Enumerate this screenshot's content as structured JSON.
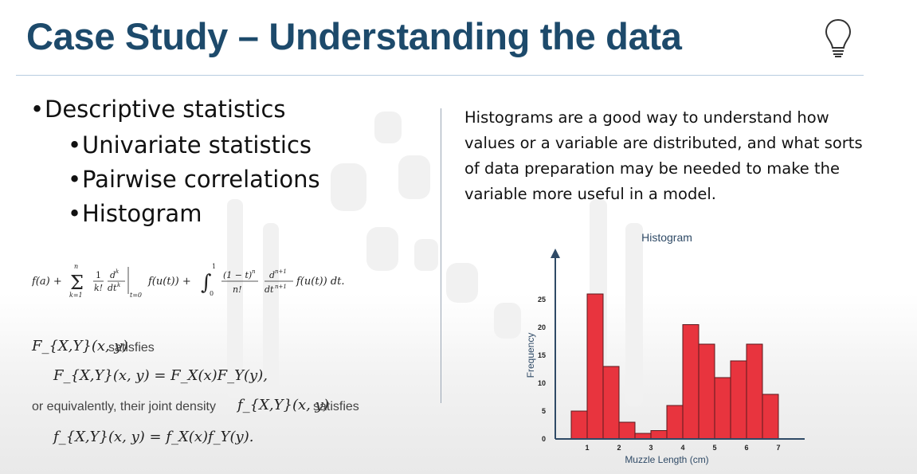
{
  "slide": {
    "title": "Case Study – Understanding the data",
    "title_color": "#1d4a6b",
    "icon": "lightbulb-icon"
  },
  "bullets": {
    "level1": [
      "Descriptive statistics"
    ],
    "level2": [
      "Univariate statistics",
      "Pairwise correlations",
      "Histogram"
    ]
  },
  "formulas": {
    "taylor": "f(a) + Σ_{k=1}^{n} (1/k!) (d^k/dt^k) f(u(t)) |_{t=0} + ∫_0^1 ((1 − t)^n / n!) (d^{n+1}/dt^{n+1}) f(u(t)) dt.",
    "joint_cdf": "F_{X,Y}(x, y)",
    "satisfies_1": "satisfies",
    "cdf_product": "F_{X,Y}(x, y) = F_X(x)F_Y(y),",
    "or_equivalently": "or equivalently, their joint density",
    "joint_pdf": "f_{X,Y}(x, y)",
    "satisfies_2": "satisfies",
    "pdf_product": "f_{X,Y}(x, y) = f_X(x)f_Y(y)."
  },
  "description": "Histograms are a good way to understand how values or a variable are distributed, and what sorts of data preparation may be needed to make the variable more useful in a model.",
  "chart_data": {
    "type": "bar",
    "title": "Histogram",
    "xlabel": "Muzzle Length (cm)",
    "ylabel": "Frequency",
    "bin_width": 0.5,
    "bins_start": [
      0.5,
      1.0,
      1.5,
      2.0,
      2.5,
      3.0,
      3.5,
      4.0,
      4.5,
      5.0,
      5.5,
      6.0,
      6.5
    ],
    "values": [
      5,
      26,
      13,
      3,
      1,
      1.5,
      6,
      20.5,
      17,
      11,
      14,
      17,
      8
    ],
    "xticks": [
      1,
      2,
      3,
      4,
      5,
      6,
      7
    ],
    "yticks": [
      0,
      5,
      10,
      15,
      20,
      25
    ],
    "xlim": [
      0,
      7.5
    ],
    "ylim": [
      0,
      32
    ],
    "bar_color": "#e8343e",
    "grid": false
  }
}
